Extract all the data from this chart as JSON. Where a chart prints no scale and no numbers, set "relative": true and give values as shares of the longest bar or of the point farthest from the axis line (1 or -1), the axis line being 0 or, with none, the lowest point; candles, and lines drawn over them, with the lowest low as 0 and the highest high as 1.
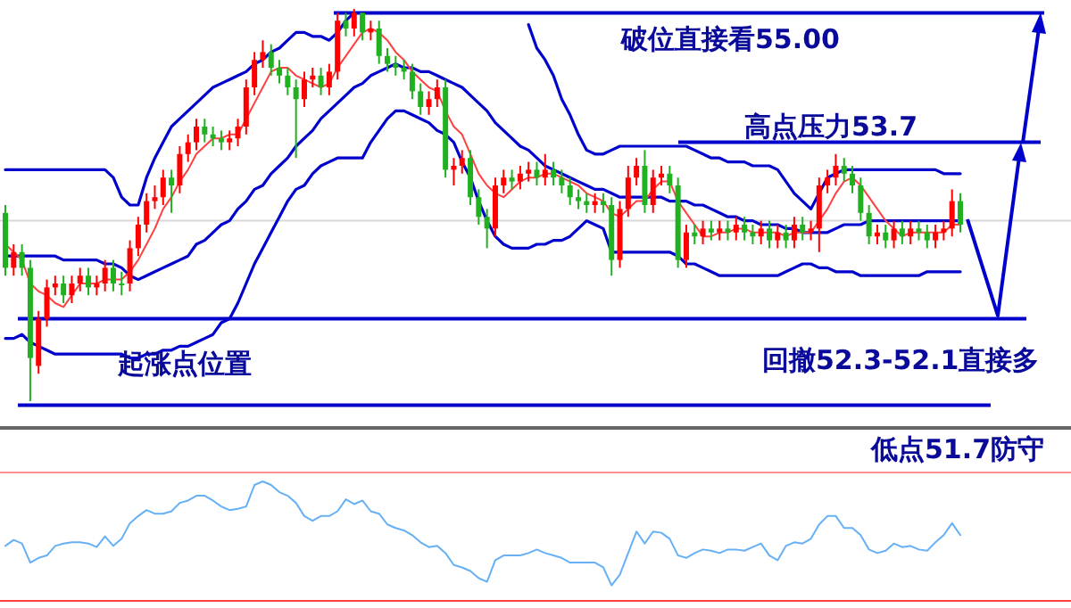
{
  "chart_data": [
    {
      "type": "candlestick",
      "relative": true,
      "categories": [
        null,
        null,
        null,
        null,
        null,
        null,
        null,
        null,
        null,
        null,
        null,
        null,
        null,
        null,
        null,
        null,
        null,
        null,
        null,
        null,
        null,
        null,
        null,
        null,
        null,
        null,
        null,
        null,
        null,
        null,
        null,
        null,
        null,
        null,
        null,
        null,
        null,
        null,
        null,
        null,
        null,
        null,
        null,
        null,
        null,
        null,
        null,
        null,
        null,
        null,
        null,
        null,
        null,
        null,
        null,
        null,
        null,
        null,
        null,
        null,
        null,
        null,
        null,
        null,
        null,
        null,
        null,
        null,
        null,
        null,
        null,
        null,
        null,
        null,
        null,
        null,
        null,
        null,
        null,
        null,
        null,
        null,
        null,
        null,
        null,
        null,
        null,
        null,
        null,
        null,
        null,
        null,
        null,
        null,
        null,
        null,
        null,
        null,
        null,
        null,
        null,
        null,
        null,
        null,
        null,
        null,
        null,
        null,
        null,
        null,
        null,
        null,
        null,
        null,
        null,
        null
      ],
      "ohlc": [
        [
          0.48,
          0.5,
          0.32,
          0.34
        ],
        [
          0.34,
          0.4,
          0.32,
          0.38
        ],
        [
          0.38,
          0.4,
          0.32,
          0.34
        ],
        [
          0.34,
          0.36,
          0,
          0.11
        ],
        [
          0.09,
          0.23,
          0.07,
          0.21
        ],
        [
          0.21,
          0.31,
          0.19,
          0.29
        ],
        [
          0.29,
          0.32,
          0.27,
          0.3
        ],
        [
          0.3,
          0.32,
          0.25,
          0.27
        ],
        [
          0.27,
          0.32,
          0.25,
          0.3
        ],
        [
          0.3,
          0.34,
          0.28,
          0.32
        ],
        [
          0.32,
          0.34,
          0.27,
          0.29
        ],
        [
          0.29,
          0.32,
          0.27,
          0.3
        ],
        [
          0.3,
          0.36,
          0.28,
          0.34
        ],
        [
          0.34,
          0.36,
          0.28,
          0.3
        ],
        [
          0.3,
          0.33,
          0.27,
          0.3
        ],
        [
          0.3,
          0.41,
          0.28,
          0.39
        ],
        [
          0.39,
          0.47,
          0.37,
          0.45
        ],
        [
          0.45,
          0.53,
          0.43,
          0.51
        ],
        [
          0.51,
          0.55,
          0.49,
          0.52
        ],
        [
          0.52,
          0.59,
          0.5,
          0.57
        ],
        [
          0.57,
          0.59,
          0.48,
          0.55
        ],
        [
          0.55,
          0.65,
          0.53,
          0.63
        ],
        [
          0.63,
          0.68,
          0.61,
          0.66
        ],
        [
          0.66,
          0.72,
          0.64,
          0.7
        ],
        [
          0.7,
          0.72,
          0.66,
          0.68
        ],
        [
          0.68,
          0.7,
          0.65,
          0.67
        ],
        [
          0.67,
          0.69,
          0.64,
          0.66
        ],
        [
          0.66,
          0.69,
          0.64,
          0.67
        ],
        [
          0.67,
          0.72,
          0.65,
          0.7
        ],
        [
          0.7,
          0.82,
          0.68,
          0.8
        ],
        [
          0.8,
          0.89,
          0.78,
          0.87
        ],
        [
          0.87,
          0.92,
          0.85,
          0.89
        ],
        [
          0.89,
          0.91,
          0.83,
          0.85
        ],
        [
          0.85,
          0.87,
          0.81,
          0.83
        ],
        [
          0.83,
          0.85,
          0.78,
          0.8
        ],
        [
          0.8,
          0.82,
          0.62,
          0.77
        ],
        [
          0.77,
          0.84,
          0.75,
          0.82
        ],
        [
          0.82,
          0.85,
          0.8,
          0.83
        ],
        [
          0.83,
          0.85,
          0.78,
          0.8
        ],
        [
          0.8,
          0.86,
          0.78,
          0.84
        ],
        [
          0.84,
          0.99,
          0.82,
          0.97
        ],
        [
          0.97,
          0.99,
          0.93,
          0.95
        ],
        [
          0.95,
          1,
          0.93,
          0.99
        ],
        [
          0.99,
          0.99,
          0.92,
          0.94
        ],
        [
          0.94,
          0.97,
          0.92,
          0.95
        ],
        [
          0.95,
          0.97,
          0.86,
          0.88
        ],
        [
          0.88,
          0.9,
          0.84,
          0.86
        ],
        [
          0.86,
          0.88,
          0.83,
          0.85
        ],
        [
          0.85,
          0.87,
          0.82,
          0.84
        ],
        [
          0.84,
          0.86,
          0.77,
          0.79
        ],
        [
          0.79,
          0.81,
          0.73,
          0.75
        ],
        [
          0.75,
          0.79,
          0.73,
          0.77
        ],
        [
          0.77,
          0.82,
          0.75,
          0.8
        ],
        [
          0.8,
          0.82,
          0.57,
          0.59
        ],
        [
          0.59,
          0.62,
          0.55,
          0.6
        ],
        [
          0.6,
          0.64,
          0.58,
          0.62
        ],
        [
          0.62,
          0.64,
          0.5,
          0.52
        ],
        [
          0.52,
          0.54,
          0.45,
          0.47
        ],
        [
          0.47,
          0.49,
          0.39,
          0.44
        ],
        [
          0.44,
          0.57,
          0.42,
          0.55
        ],
        [
          0.55,
          0.59,
          0.53,
          0.57
        ],
        [
          0.57,
          0.59,
          0.54,
          0.56
        ],
        [
          0.56,
          0.6,
          0.54,
          0.58
        ],
        [
          0.58,
          0.61,
          0.56,
          0.59
        ],
        [
          0.59,
          0.61,
          0.55,
          0.57
        ],
        [
          0.57,
          0.63,
          0.55,
          0.59
        ],
        [
          0.59,
          0.61,
          0.55,
          0.57
        ],
        [
          0.57,
          0.59,
          0.53,
          0.55
        ],
        [
          0.55,
          0.57,
          0.5,
          0.52
        ],
        [
          0.52,
          0.54,
          0.49,
          0.51
        ],
        [
          0.51,
          0.53,
          0.48,
          0.5
        ],
        [
          0.5,
          0.53,
          0.48,
          0.51
        ],
        [
          0.51,
          0.53,
          0.48,
          0.5
        ],
        [
          0.5,
          0.52,
          0.32,
          0.36
        ],
        [
          0.36,
          0.51,
          0.34,
          0.49
        ],
        [
          0.49,
          0.6,
          0.47,
          0.57
        ],
        [
          0.57,
          0.62,
          0.55,
          0.6
        ],
        [
          0.6,
          0.64,
          0.48,
          0.5
        ],
        [
          0.5,
          0.59,
          0.48,
          0.57
        ],
        [
          0.57,
          0.6,
          0.55,
          0.58
        ],
        [
          0.58,
          0.6,
          0.53,
          0.55
        ],
        [
          0.55,
          0.57,
          0.34,
          0.36
        ],
        [
          0.36,
          0.45,
          0.34,
          0.43
        ],
        [
          0.43,
          0.45,
          0.4,
          0.42
        ],
        [
          0.42,
          0.46,
          0.4,
          0.44
        ],
        [
          0.44,
          0.46,
          0.41,
          0.43
        ],
        [
          0.43,
          0.46,
          0.41,
          0.44
        ],
        [
          0.44,
          0.46,
          0.41,
          0.43
        ],
        [
          0.43,
          0.47,
          0.41,
          0.45
        ],
        [
          0.45,
          0.47,
          0.41,
          0.43
        ],
        [
          0.43,
          0.45,
          0.4,
          0.42
        ],
        [
          0.42,
          0.46,
          0.4,
          0.44
        ],
        [
          0.44,
          0.46,
          0.39,
          0.41
        ],
        [
          0.41,
          0.45,
          0.39,
          0.43
        ],
        [
          0.43,
          0.45,
          0.39,
          0.41
        ],
        [
          0.41,
          0.47,
          0.39,
          0.45
        ],
        [
          0.45,
          0.47,
          0.41,
          0.43
        ],
        [
          0.43,
          0.46,
          0.41,
          0.44
        ],
        [
          0.44,
          0.57,
          0.38,
          0.55
        ],
        [
          0.55,
          0.59,
          0.53,
          0.57
        ],
        [
          0.57,
          0.63,
          0.55,
          0.6
        ],
        [
          0.6,
          0.62,
          0.56,
          0.58
        ],
        [
          0.58,
          0.6,
          0.53,
          0.55
        ],
        [
          0.55,
          0.57,
          0.46,
          0.48
        ],
        [
          0.48,
          0.5,
          0.4,
          0.42
        ],
        [
          0.42,
          0.45,
          0.4,
          0.43
        ],
        [
          0.43,
          0.45,
          0.39,
          0.41
        ],
        [
          0.41,
          0.46,
          0.39,
          0.44
        ],
        [
          0.44,
          0.46,
          0.4,
          0.42
        ],
        [
          0.42,
          0.46,
          0.4,
          0.44
        ],
        [
          0.44,
          0.46,
          0.41,
          0.43
        ],
        [
          0.43,
          0.45,
          0.39,
          0.41
        ],
        [
          0.41,
          0.45,
          0.39,
          0.43
        ],
        [
          0.43,
          0.46,
          0.41,
          0.44
        ],
        [
          0.44,
          0.54,
          0.42,
          0.51
        ],
        [
          0.51,
          0.53,
          0.43,
          0.45
        ]
      ],
      "colors": [
        "#20b020",
        "#ff0000",
        "#20b020",
        "#20b020",
        "#ff0000",
        "#ff0000",
        "#ff0000",
        "#20b020",
        "#ff0000",
        "#ff0000",
        "#20b020",
        "#ff0000",
        "#ff0000",
        "#20b020",
        "#20b020",
        "#ff0000",
        "#ff0000",
        "#ff0000",
        "#ff0000",
        "#ff0000",
        "#20b020",
        "#ff0000",
        "#ff0000",
        "#ff0000",
        "#20b020",
        "#20b020",
        "#20b020",
        "#ff0000",
        "#ff0000",
        "#ff0000",
        "#ff0000",
        "#ff0000",
        "#20b020",
        "#20b020",
        "#20b020",
        "#20b020",
        "#ff0000",
        "#ff0000",
        "#20b020",
        "#ff0000",
        "#ff0000",
        "#20b020",
        "#ff0000",
        "#20b020",
        "#ff0000",
        "#20b020",
        "#20b020",
        "#20b020",
        "#20b020",
        "#20b020",
        "#20b020",
        "#ff0000",
        "#ff0000",
        "#20b020",
        "#ff0000",
        "#ff0000",
        "#20b020",
        "#20b020",
        "#20b020",
        "#ff0000",
        "#ff0000",
        "#20b020",
        "#ff0000",
        "#ff0000",
        "#20b020",
        "#ff0000",
        "#20b020",
        "#20b020",
        "#20b020",
        "#20b020",
        "#20b020",
        "#ff0000",
        "#20b020",
        "#20b020",
        "#ff0000",
        "#ff0000",
        "#ff0000",
        "#20b020",
        "#ff0000",
        "#ff0000",
        "#20b020",
        "#20b020",
        "#ff0000",
        "#20b020",
        "#ff0000",
        "#20b020",
        "#ff0000",
        "#20b020",
        "#ff0000",
        "#20b020",
        "#20b020",
        "#ff0000",
        "#20b020",
        "#ff0000",
        "#20b020",
        "#ff0000",
        "#20b020",
        "#ff0000",
        "#ff0000",
        "#ff0000",
        "#ff0000",
        "#20b020",
        "#20b020",
        "#20b020",
        "#20b020",
        "#ff0000",
        "#20b020",
        "#ff0000",
        "#20b020",
        "#ff0000",
        "#20b020",
        "#20b020",
        "#ff0000",
        "#ff0000",
        "#ff0000",
        "#20b020"
      ],
      "series": [
        {
          "type": "line",
          "color": "#0000cc",
          "values": [
            0.59,
            0.59,
            0.59,
            0.59,
            0.59,
            0.59,
            0.59,
            0.59,
            0.59,
            0.59,
            0.59,
            0.59,
            0.59,
            0.57,
            0.52,
            0.5,
            0.5,
            0.57,
            0.62,
            0.66,
            0.7,
            0.72,
            0.74,
            0.76,
            0.78,
            0.8,
            0.81,
            0.82,
            0.83,
            0.84,
            0.86,
            0.87,
            0.89,
            0.9,
            0.92,
            0.94,
            0.94,
            0.93,
            0.93,
            0.92,
            0.94,
            0.97,
            0.99,
            null,
            null,
            null,
            null,
            null,
            null,
            null,
            null,
            null,
            null,
            null,
            null,
            null,
            null,
            null,
            null,
            null,
            null,
            null,
            null,
            0.96,
            0.9,
            0.87,
            0.83,
            0.77,
            0.73,
            0.68,
            0.64,
            0.63,
            0.63,
            0.64,
            0.65,
            0.65,
            0.65,
            0.65,
            0.65,
            0.65,
            0.65,
            0.65,
            0.65,
            0.64,
            0.63,
            0.62,
            0.62,
            0.61,
            0.61,
            0.61,
            0.6,
            0.6,
            0.6,
            0.59,
            0.56,
            0.53,
            0.51,
            0.49,
            0.53,
            0.57,
            0.58,
            0.59,
            0.59,
            0.59,
            0.59,
            0.59,
            0.59,
            0.59,
            0.59,
            0.59,
            0.59,
            0.59,
            0.59,
            0.58,
            0.58,
            0.58
          ]
        },
        {
          "type": "line",
          "color": "#0000cc",
          "values": [
            0.37,
            0.37,
            0.37,
            0.37,
            0.37,
            0.37,
            0.37,
            0.36,
            0.36,
            0.36,
            0.36,
            0.36,
            0.35,
            0.35,
            0.34,
            0.32,
            0.31,
            0.32,
            0.33,
            0.34,
            0.35,
            0.36,
            0.37,
            0.4,
            0.41,
            0.43,
            0.45,
            0.46,
            0.49,
            0.51,
            0.54,
            0.55,
            0.58,
            0.6,
            0.62,
            0.65,
            0.67,
            0.69,
            0.72,
            0.74,
            0.76,
            0.78,
            0.8,
            0.81,
            0.83,
            0.84,
            0.85,
            0.86,
            0.85,
            0.85,
            0.84,
            0.84,
            0.83,
            0.82,
            0.81,
            0.8,
            0.78,
            0.76,
            0.74,
            0.71,
            0.69,
            0.67,
            0.65,
            0.64,
            0.62,
            0.6,
            0.59,
            0.58,
            0.57,
            0.56,
            0.55,
            0.54,
            0.54,
            0.53,
            0.52,
            0.52,
            0.52,
            0.52,
            0.52,
            0.52,
            0.51,
            0.51,
            0.51,
            0.5,
            0.5,
            0.49,
            0.48,
            0.47,
            0.47,
            0.46,
            0.46,
            0.45,
            0.45,
            0.45,
            0.44,
            0.44,
            0.43,
            0.43,
            0.43,
            0.43,
            0.44,
            0.45,
            0.45,
            0.45,
            0.46,
            0.46,
            0.46,
            0.46,
            0.46,
            0.46,
            0.46,
            0.46,
            0.46,
            0.46,
            0.46,
            0.46
          ]
        },
        {
          "type": "line",
          "color": "#0000cc",
          "values": [
            0.16,
            0.16,
            0.17,
            0.15,
            0.14,
            0.13,
            0.12,
            0.12,
            0.12,
            0.12,
            0.12,
            0.12,
            0.12,
            0.12,
            0.12,
            0.11,
            0.11,
            0.12,
            0.12,
            0.13,
            0.13,
            0.14,
            0.14,
            0.15,
            0.16,
            0.17,
            0.2,
            0.21,
            0.25,
            0.3,
            0.35,
            0.39,
            0.43,
            0.47,
            0.51,
            0.54,
            0.55,
            0.58,
            0.6,
            0.61,
            0.62,
            0.62,
            0.62,
            0.62,
            0.66,
            0.69,
            0.72,
            0.74,
            0.74,
            0.73,
            0.72,
            0.71,
            0.69,
            0.68,
            0.66,
            0.61,
            0.57,
            0.51,
            0.46,
            0.42,
            0.4,
            0.39,
            0.39,
            0.39,
            0.4,
            0.4,
            0.41,
            0.41,
            0.42,
            0.44,
            0.46,
            0.45,
            0.44,
            0.38,
            0.38,
            0.38,
            0.38,
            0.38,
            0.38,
            0.38,
            0.38,
            0.37,
            0.35,
            0.35,
            0.34,
            0.33,
            0.32,
            0.32,
            0.32,
            0.32,
            0.32,
            0.32,
            0.32,
            0.32,
            0.33,
            0.34,
            0.35,
            0.35,
            0.34,
            0.34,
            0.33,
            0.33,
            0.33,
            0.32,
            0.32,
            0.32,
            0.32,
            0.32,
            0.32,
            0.32,
            0.32,
            0.33,
            0.33,
            0.33,
            0.33,
            0.33
          ]
        },
        {
          "type": "line",
          "color": "#ff4040",
          "values": [
            0.4,
            0.38,
            0.36,
            0.3,
            0.28,
            0.27,
            0.25,
            0.24,
            0.27,
            0.3,
            0.3,
            0.3,
            0.31,
            0.31,
            0.31,
            0.33,
            0.36,
            0.4,
            0.44,
            0.49,
            0.52,
            0.56,
            0.59,
            0.63,
            0.65,
            0.67,
            0.67,
            0.68,
            0.68,
            0.72,
            0.76,
            0.8,
            0.84,
            0.85,
            0.85,
            0.83,
            0.82,
            0.81,
            0.8,
            0.81,
            0.85,
            0.88,
            0.91,
            0.94,
            0.95,
            0.94,
            0.92,
            0.89,
            0.87,
            0.84,
            0.82,
            0.8,
            0.79,
            0.74,
            0.7,
            0.68,
            0.63,
            0.58,
            0.55,
            0.53,
            0.52,
            0.54,
            0.56,
            0.57,
            0.57,
            0.58,
            0.58,
            0.57,
            0.56,
            0.55,
            0.53,
            0.52,
            0.51,
            0.48,
            0.47,
            0.49,
            0.51,
            0.51,
            0.54,
            0.56,
            0.56,
            0.51,
            0.48,
            0.45,
            0.42,
            0.42,
            0.43,
            0.43,
            0.44,
            0.44,
            0.43,
            0.43,
            0.43,
            0.43,
            0.42,
            0.43,
            0.43,
            0.43,
            0.46,
            0.49,
            0.53,
            0.56,
            0.57,
            0.55,
            0.52,
            0.49,
            0.46,
            0.44,
            0.42,
            0.43,
            0.43,
            0.43,
            0.43,
            0.43,
            0.45,
            0.45
          ]
        }
      ],
      "ref_lines": [
        {
          "axis": "y",
          "value": 0.99,
          "label": "破位直接看55.00",
          "color": "#0000cc"
        },
        {
          "axis": "y",
          "value": 0.66,
          "label": "高点压力53.7",
          "color": "#0000cc"
        },
        {
          "axis": "y",
          "value": 0.21,
          "label": "回撤52.3-52.1直接多",
          "color": "#0000cc"
        },
        {
          "axis": "y",
          "value": -0.01,
          "label": "低点51.7防守",
          "color": "#0000cc"
        },
        {
          "axis": "y",
          "value": 0.46,
          "label": null,
          "color": "#d8d8d8"
        }
      ],
      "annotations": [
        "起涨点位置"
      ]
    },
    {
      "type": "line",
      "relative": true,
      "categories": [
        null,
        null,
        null,
        null,
        null,
        null,
        null,
        null,
        null,
        null,
        null,
        null,
        null,
        null,
        null,
        null,
        null,
        null,
        null,
        null,
        null,
        null,
        null,
        null,
        null,
        null,
        null,
        null,
        null,
        null,
        null,
        null,
        null,
        null,
        null,
        null,
        null,
        null,
        null,
        null,
        null,
        null,
        null,
        null,
        null,
        null,
        null,
        null,
        null,
        null,
        null,
        null,
        null,
        null,
        null,
        null,
        null,
        null,
        null,
        null,
        null,
        null,
        null,
        null,
        null,
        null,
        null,
        null,
        null,
        null,
        null,
        null,
        null,
        null,
        null,
        null,
        null,
        null,
        null,
        null,
        null,
        null,
        null,
        null,
        null,
        null,
        null,
        null,
        null,
        null,
        null,
        null,
        null,
        null,
        null,
        null,
        null,
        null,
        null,
        null,
        null,
        null,
        null,
        null,
        null,
        null,
        null,
        null,
        null,
        null,
        null,
        null,
        null,
        null,
        null,
        null
      ],
      "series": [
        {
          "color": "#66b0f5",
          "values": [
            0.46,
            0.51,
            0.48,
            0.32,
            0.36,
            0.38,
            0.46,
            0.48,
            0.49,
            0.49,
            0.48,
            0.45,
            0.54,
            0.46,
            0.52,
            0.65,
            0.71,
            0.76,
            0.73,
            0.73,
            0.75,
            0.82,
            0.84,
            0.88,
            0.88,
            0.84,
            0.79,
            0.76,
            0.77,
            0.79,
            0.97,
            1,
            0.97,
            0.91,
            0.88,
            0.82,
            0.71,
            0.67,
            0.71,
            0.71,
            0.75,
            0.85,
            0.81,
            0.84,
            0.75,
            0.73,
            0.64,
            0.61,
            0.59,
            0.55,
            0.49,
            0.45,
            0.46,
            0.4,
            0.3,
            0.28,
            0.25,
            0.19,
            0.16,
            0.34,
            0.38,
            0.38,
            0.38,
            0.4,
            0.43,
            0.4,
            0.38,
            0.36,
            0.32,
            0.32,
            0.32,
            0.32,
            0.28,
            0.13,
            0.22,
            0.4,
            0.58,
            0.48,
            0.58,
            0.57,
            0.52,
            0.38,
            0.36,
            0.4,
            0.43,
            0.42,
            0.4,
            0.43,
            0.43,
            0.42,
            0.45,
            0.48,
            0.38,
            0.34,
            0.46,
            0.49,
            0.48,
            0.52,
            0.64,
            0.71,
            0.71,
            0.61,
            0.61,
            0.55,
            0.43,
            0.4,
            0.42,
            0.48,
            0.45,
            0.46,
            0.43,
            0.42,
            0.49,
            0.55,
            0.65,
            0.55
          ]
        }
      ]
    }
  ]
}
